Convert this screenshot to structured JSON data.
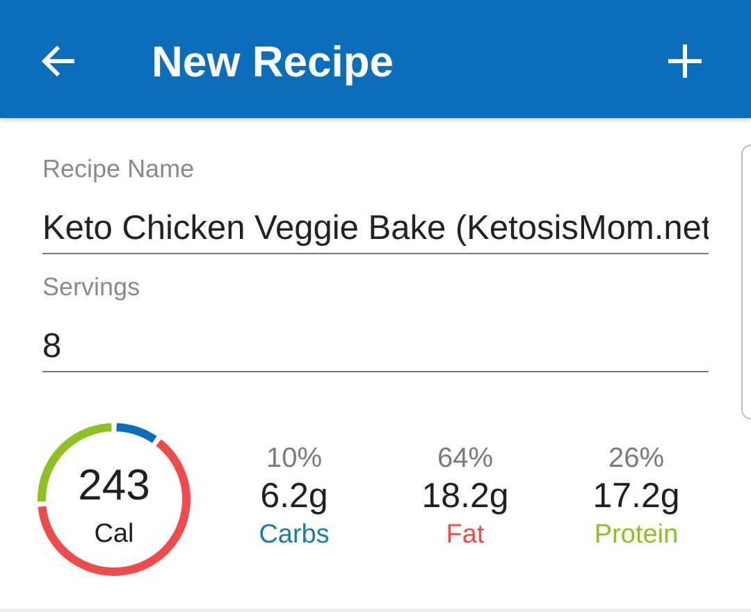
{
  "header": {
    "title": "New Recipe",
    "back_icon": "arrow-left-icon",
    "add_icon": "plus-icon",
    "background": "#0a6ebd"
  },
  "form": {
    "recipe_name": {
      "label": "Recipe Name",
      "value": "Keto Chicken Veggie Bake (KetosisMom.net)"
    },
    "servings": {
      "label": "Servings",
      "value": "8"
    }
  },
  "nutrition": {
    "calories": "243",
    "calories_unit": "Cal",
    "macros": [
      {
        "name": "Carbs",
        "percent": "10%",
        "grams": "6.2g",
        "color": "#1a7fa0",
        "ring_color": "#0a6ebd",
        "fraction": 0.1
      },
      {
        "name": "Fat",
        "percent": "64%",
        "grams": "18.2g",
        "color": "#ef4b4b",
        "ring_color": "#ef4b4b",
        "fraction": 0.64
      },
      {
        "name": "Protein",
        "percent": "26%",
        "grams": "17.2g",
        "color": "#8cc11f",
        "ring_color": "#8cc11f",
        "fraction": 0.26
      }
    ]
  }
}
